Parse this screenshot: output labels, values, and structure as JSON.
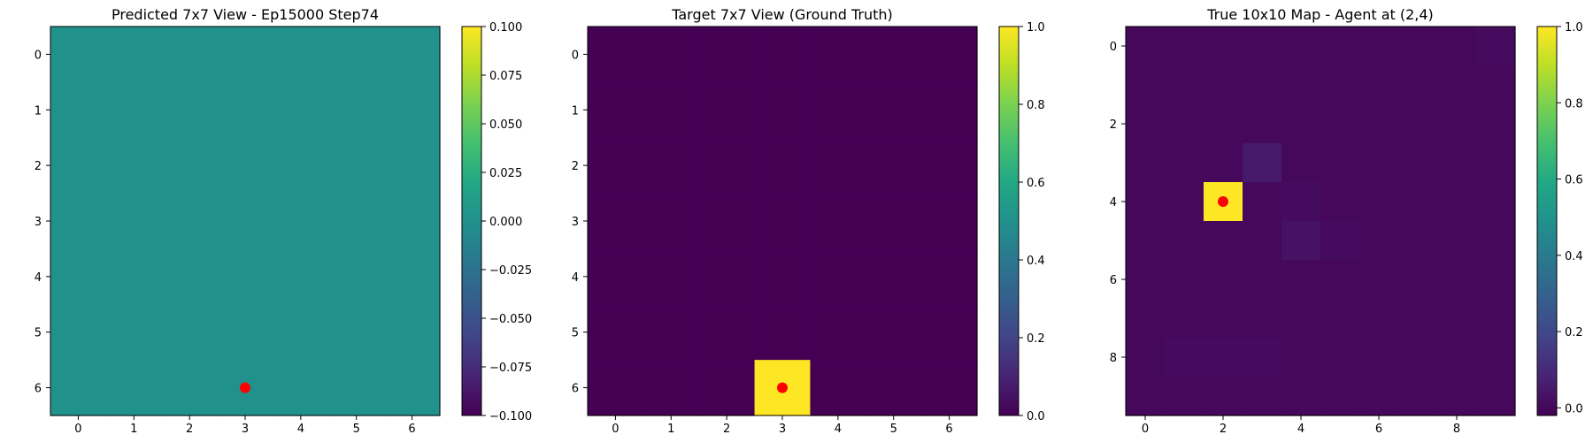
{
  "chart_data": [
    {
      "type": "heatmap",
      "title": "Predicted 7x7 View - Ep15000 Step74",
      "rows": 7,
      "cols": 7,
      "x_ticks": [
        0,
        1,
        2,
        3,
        4,
        5,
        6
      ],
      "y_ticks": [
        0,
        1,
        2,
        3,
        4,
        5,
        6
      ],
      "values": [
        [
          0,
          0,
          0,
          0,
          0,
          0,
          0
        ],
        [
          0,
          0,
          0,
          0,
          0,
          0,
          0
        ],
        [
          0,
          0,
          0,
          0,
          0,
          0,
          0
        ],
        [
          0,
          0,
          0,
          0,
          0,
          0,
          0
        ],
        [
          0,
          0,
          0,
          0,
          0,
          0,
          0
        ],
        [
          0,
          0,
          0,
          0,
          0,
          0,
          0
        ],
        [
          0,
          0,
          0,
          0,
          0,
          0,
          0
        ]
      ],
      "colormap": "viridis",
      "vmin": -0.1,
      "vmax": 0.1,
      "colorbar_ticks": [
        0.1,
        0.075,
        0.05,
        0.025,
        0.0,
        -0.025,
        -0.05,
        -0.075,
        -0.1
      ],
      "colorbar_tick_labels": [
        "0.100",
        "0.075",
        "0.050",
        "0.025",
        "0.000",
        "−0.025",
        "−0.050",
        "−0.075",
        "−0.100"
      ],
      "marker": {
        "x": 3,
        "y": 6,
        "color": "#ff0000"
      }
    },
    {
      "type": "heatmap",
      "title": "Target 7x7 View (Ground Truth)",
      "rows": 7,
      "cols": 7,
      "x_ticks": [
        0,
        1,
        2,
        3,
        4,
        5,
        6
      ],
      "y_ticks": [
        0,
        1,
        2,
        3,
        4,
        5,
        6
      ],
      "values": [
        [
          0,
          0,
          0,
          0,
          0,
          0,
          0
        ],
        [
          0,
          0,
          0,
          0,
          0,
          0,
          0
        ],
        [
          0,
          0,
          0,
          0,
          0,
          0,
          0
        ],
        [
          0,
          0,
          0,
          0,
          0,
          0,
          0
        ],
        [
          0,
          0,
          0,
          0,
          0,
          0,
          0
        ],
        [
          0,
          0,
          0,
          0,
          0,
          0,
          0
        ],
        [
          0,
          0,
          0,
          1,
          0,
          0,
          0
        ]
      ],
      "colormap": "viridis",
      "vmin": 0,
      "vmax": 1,
      "colorbar_ticks": [
        1.0,
        0.8,
        0.6,
        0.4,
        0.2,
        0.0
      ],
      "colorbar_tick_labels": [
        "1.0",
        "0.8",
        "0.6",
        "0.4",
        "0.2",
        "0.0"
      ],
      "marker": {
        "x": 3,
        "y": 6,
        "color": "#ff0000"
      }
    },
    {
      "type": "heatmap",
      "title": "True 10x10 Map - Agent at (2,4)",
      "rows": 10,
      "cols": 10,
      "x_ticks": [
        0,
        2,
        4,
        6,
        8
      ],
      "y_ticks": [
        0,
        2,
        4,
        6,
        8
      ],
      "values": [
        [
          0,
          0,
          0,
          0,
          0,
          0,
          0,
          0,
          0,
          0.01
        ],
        [
          0,
          0,
          0,
          0,
          0,
          0,
          0,
          0,
          0,
          0
        ],
        [
          0,
          0,
          0,
          0,
          0,
          0,
          0,
          0,
          0,
          0
        ],
        [
          0,
          0,
          0,
          0.05,
          0,
          0,
          0,
          0,
          0,
          0
        ],
        [
          0,
          0,
          1,
          0,
          0.01,
          0,
          0,
          0,
          0,
          0
        ],
        [
          0,
          0,
          0,
          0,
          0.03,
          0.01,
          0,
          0,
          0,
          0
        ],
        [
          0,
          0,
          0,
          0,
          0,
          0,
          0,
          0,
          0,
          0
        ],
        [
          0,
          0,
          0,
          0,
          0,
          0,
          0,
          0,
          0,
          0
        ],
        [
          0,
          0.01,
          0.01,
          0.01,
          0,
          0,
          0,
          0,
          0,
          0
        ],
        [
          0,
          0,
          0,
          0,
          0,
          0,
          0,
          0,
          0,
          0
        ]
      ],
      "colormap": "viridis",
      "vmin": -0.02,
      "vmax": 1,
      "colorbar_ticks": [
        1.0,
        0.8,
        0.6,
        0.4,
        0.2,
        0.0
      ],
      "colorbar_tick_labels": [
        "1.0",
        "0.8",
        "0.6",
        "0.4",
        "0.2",
        "0.0"
      ],
      "marker": {
        "x": 2,
        "y": 4,
        "color": "#ff0000"
      }
    }
  ]
}
